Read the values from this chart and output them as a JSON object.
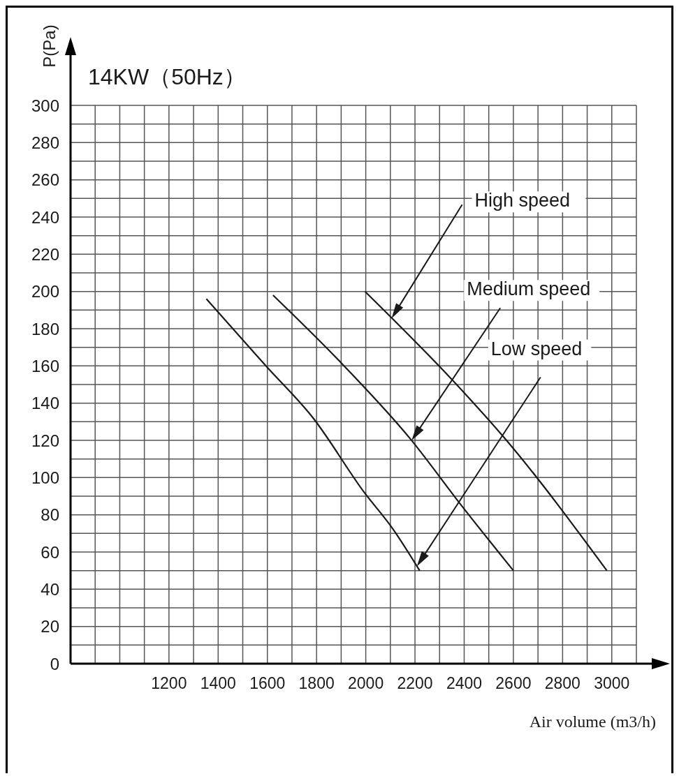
{
  "chart_data": {
    "type": "line",
    "title": "14KW（50Hz）",
    "xlabel": "Air volume (m3/h)",
    "ylabel": "P(Pa)",
    "series": [
      {
        "color": "#1a1a1a",
        "x": [
          1352,
          1594,
          1786,
          1994,
          2107,
          2219
        ],
        "values": [
          196,
          160,
          132,
          92,
          73,
          50
        ]
      },
      {
        "color": "#1a1a1a",
        "x": [
          1623,
          1890,
          2180,
          2389,
          2600
        ],
        "values": [
          198,
          163,
          121,
          85,
          50
        ]
      },
      {
        "color": "#1a1a1a",
        "x": [
          1997,
          2369,
          2572,
          2980
        ],
        "values": [
          200,
          150,
          120,
          50
        ]
      }
    ],
    "annotations": [
      "High speed",
      "Medium speed",
      "Low speed"
    ],
    "xlim": [
      800,
      3100
    ],
    "xticks": [
      1200,
      1400,
      1600,
      1800,
      2000,
      2200,
      2400,
      2600,
      2800,
      3000
    ],
    "ylim": [
      0,
      300
    ],
    "yticks": [
      0,
      20,
      40,
      60,
      80,
      100,
      120,
      140,
      160,
      180,
      200,
      220,
      240,
      260,
      280,
      300
    ],
    "grid": true,
    "marker": "none",
    "line_style": "solid"
  }
}
